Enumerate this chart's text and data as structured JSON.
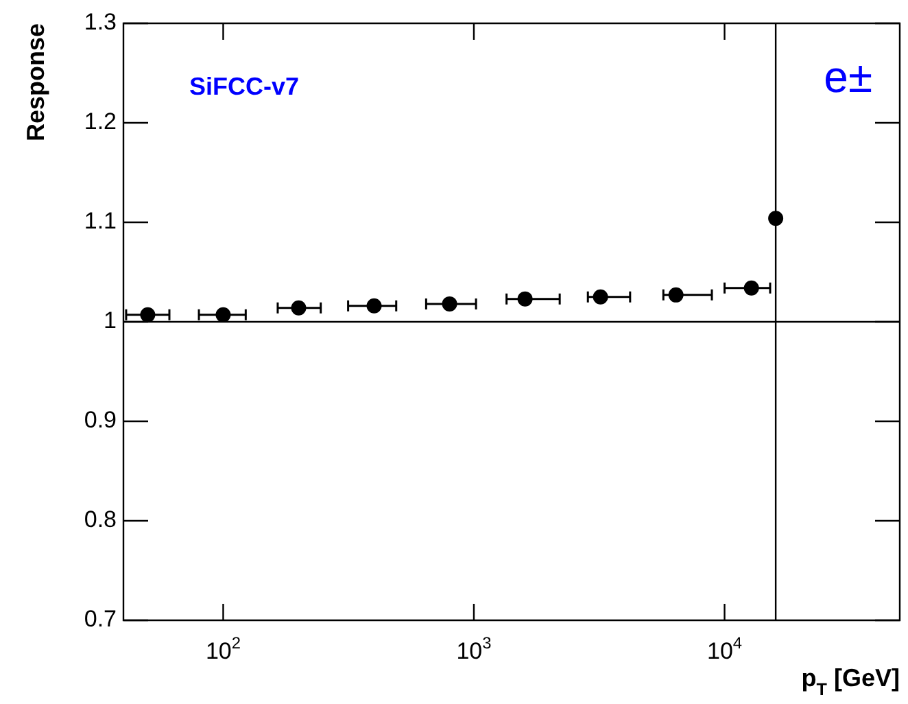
{
  "chart_data": {
    "type": "scatter",
    "xlabel": "p$_{T}$ [GeV]",
    "ylabel": "Response",
    "annotations": [
      "SiFCC-v7",
      "e±"
    ],
    "x": [
      50,
      100,
      200,
      400,
      800,
      1600,
      3200,
      6400,
      12800,
      16000
    ],
    "series": [
      {
        "color": "#000000",
        "values": [
          1.007,
          1.007,
          1.014,
          1.016,
          1.018,
          1.023,
          1.025,
          1.027,
          1.034,
          1.104
        ],
        "xerrors": [
          [
            41,
            61
          ],
          [
            80,
            123
          ],
          [
            165,
            245
          ],
          [
            315,
            490
          ],
          [
            645,
            1020
          ],
          [
            1350,
            2200
          ],
          [
            2850,
            4200
          ],
          [
            5700,
            8900
          ],
          [
            10000,
            15200
          ],
          null
        ]
      }
    ],
    "log": "x",
    "xlim": [
      40,
      50000
    ],
    "xticks": [
      {
        "value": 100,
        "label": "10$^{2}$"
      },
      {
        "value": 1000,
        "label": "10$^{3}$"
      },
      {
        "value": 10000,
        "label": "10$^{4}$"
      }
    ],
    "ylim": [
      0.7,
      1.3
    ],
    "yticks": [
      0.7,
      0.8,
      0.9,
      1,
      1.1,
      1.2,
      1.3
    ],
    "ref_lines": [
      {
        "axis": "y",
        "value": 1,
        "color": "#000000"
      },
      {
        "axis": "x",
        "value": 16000,
        "color": "#000000"
      }
    ],
    "grid": false,
    "legend": false,
    "marker": "circle"
  }
}
